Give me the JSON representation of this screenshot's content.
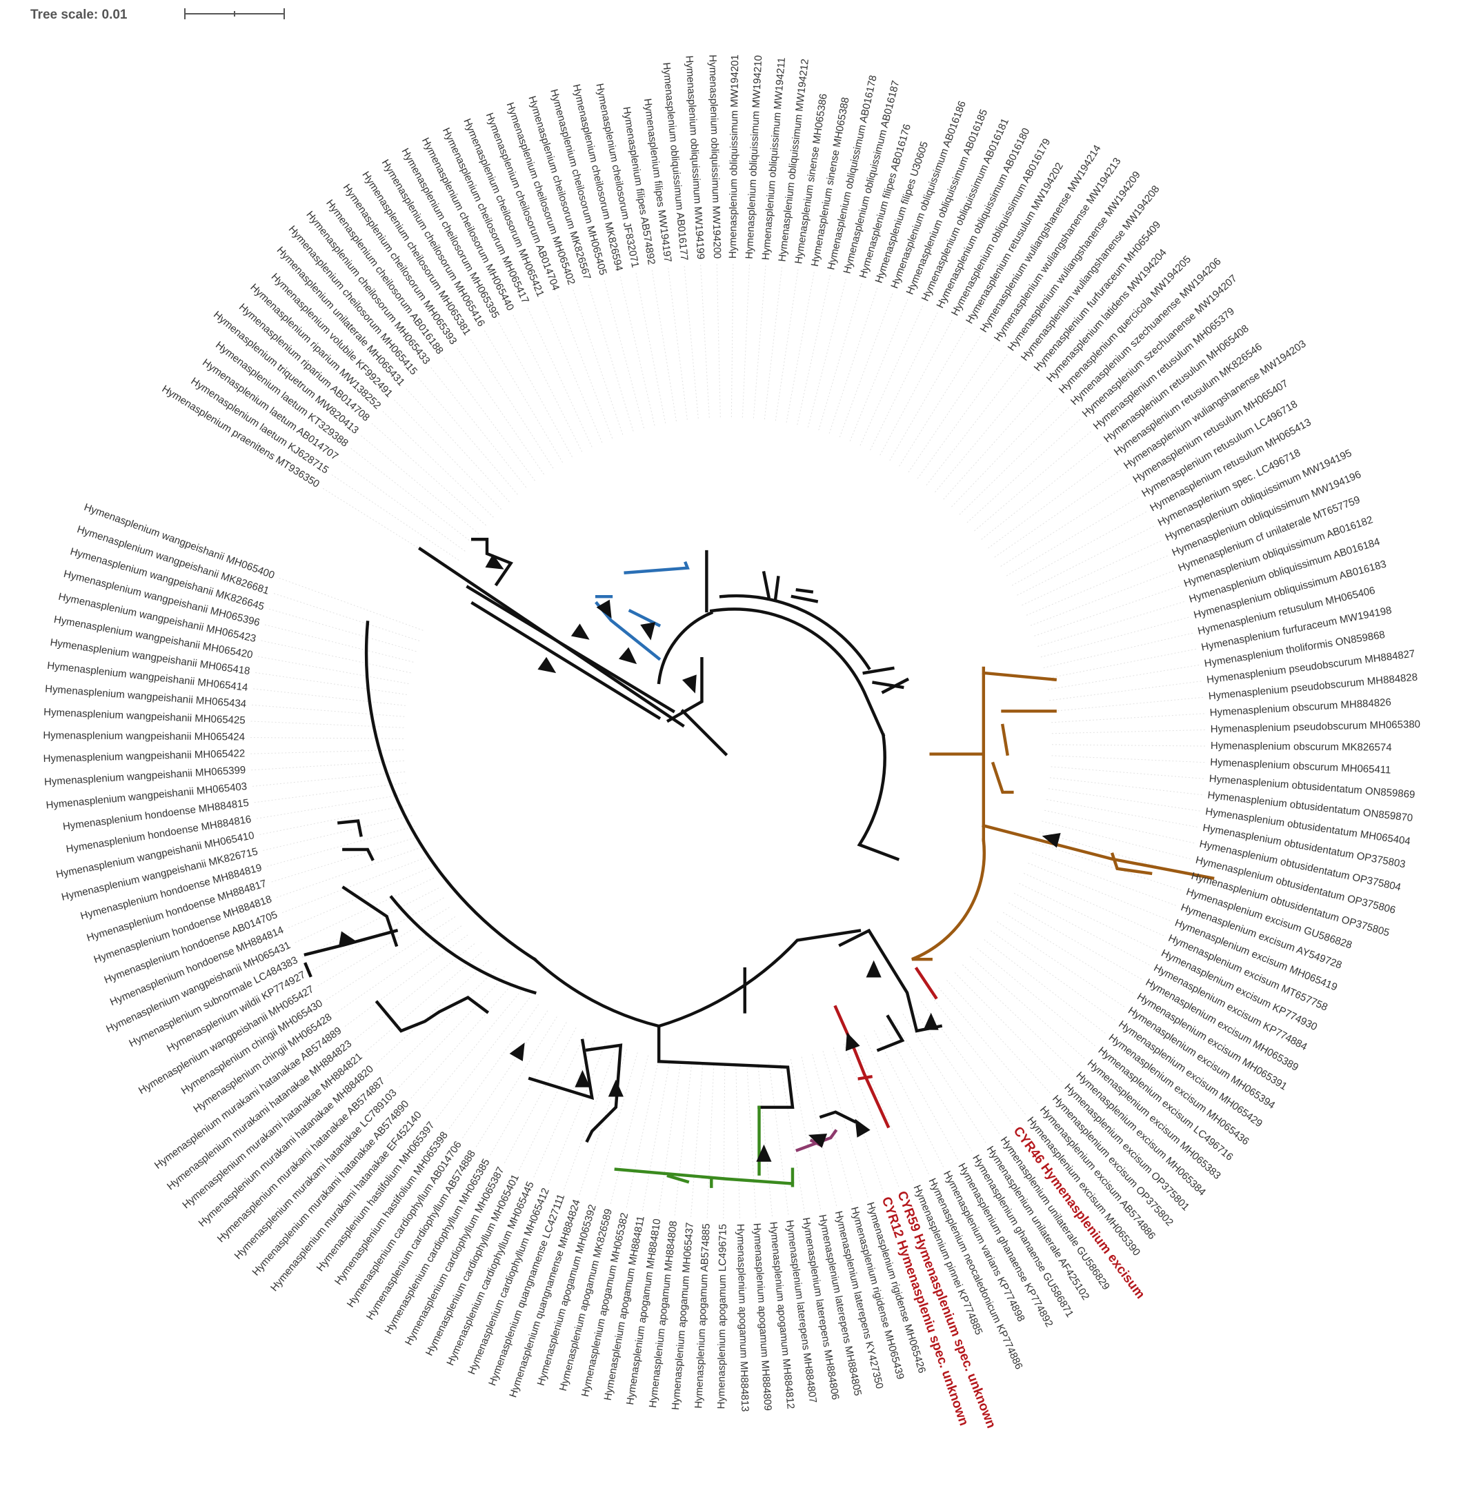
{
  "header": {
    "tree_scale": "Tree scale: 0.01"
  },
  "tree": {
    "leaves": [
      {
        "label": "Hymenasplenium praenitens MT936350"
      },
      {
        "label": "Hymenasplenium laetum KJ628715"
      },
      {
        "label": "Hymenasplenium laetum AB014707"
      },
      {
        "label": "Hymenasplenium laetum KT329388"
      },
      {
        "label": "Hymenasplenium triquetrum MW820413"
      },
      {
        "label": "Hymenasplenium riparium AB014708"
      },
      {
        "label": "Hymenasplenium riparium MW138252"
      },
      {
        "label": "Hymenasplenium volubile KF992491"
      },
      {
        "label": "Hymenasplenium unilaterale MH065431"
      },
      {
        "label": "Hymenasplenium cheilosorum MH065415"
      },
      {
        "label": "Hymenasplenium cheilosorum MH065433"
      },
      {
        "label": "Hymenasplenium cheilosorum AB016188"
      },
      {
        "label": "Hymenasplenium cheilosorum MH065393"
      },
      {
        "label": "Hymenasplenium cheilosorum MH065381"
      },
      {
        "label": "Hymenasplenium cheilosorum MH065416"
      },
      {
        "label": "Hymenasplenium cheilosorum MH065395"
      },
      {
        "label": "Hymenasplenium cheilosorum MH065440"
      },
      {
        "label": "Hymenasplenium cheilosorum MH065417"
      },
      {
        "label": "Hymenasplenium cheilosorum MH065421"
      },
      {
        "label": "Hymenasplenium cheilosorum AB014704"
      },
      {
        "label": "Hymenasplenium cheilosorum MH065402"
      },
      {
        "label": "Hymenasplenium cheilosorum MK826567"
      },
      {
        "label": "Hymenasplenium cheilosorum MH065405"
      },
      {
        "label": "Hymenasplenium cheilosorum MK826594"
      },
      {
        "label": "Hymenasplenium cheilosorum JF832071"
      },
      {
        "label": "Hymenasplenium filipes AB574892"
      },
      {
        "label": "Hymenasplenium filipes MW194197"
      },
      {
        "label": "Hymenasplenium obliquissimum AB016177"
      },
      {
        "label": "Hymenasplenium obliquissimum MW194199"
      },
      {
        "label": "Hymenasplenium obliquissimum MW194200"
      },
      {
        "label": "Hymenasplenium obliquissimum MW194201"
      },
      {
        "label": "Hymenasplenium obliquissimum MW194210"
      },
      {
        "label": "Hymenasplenium obliquissimum MW194211"
      },
      {
        "label": "Hymenasplenium obliquissimum MW194212"
      },
      {
        "label": "Hymenasplenium sinense MH065386"
      },
      {
        "label": "Hymenasplenium sinense MH065388"
      },
      {
        "label": "Hymenasplenium obliquissimum AB016178"
      },
      {
        "label": "Hymenasplenium obliquissimum AB016187"
      },
      {
        "label": "Hymenasplenium filipes AB016176"
      },
      {
        "label": "Hymenasplenium filipes U30605"
      },
      {
        "label": "Hymenasplenium obliquissimum AB016186"
      },
      {
        "label": "Hymenasplenium obliquissimum AB016185"
      },
      {
        "label": "Hymenasplenium obliquissimum AB016181"
      },
      {
        "label": "Hymenasplenium obliquissimum AB016180"
      },
      {
        "label": "Hymenasplenium obliquissimum AB016179"
      },
      {
        "label": "Hymenasplenium retusulum MW194202"
      },
      {
        "label": "Hymenasplenium wuliangshanense MW194214"
      },
      {
        "label": "Hymenasplenium wuliangshanense MW194213"
      },
      {
        "label": "Hymenasplenium wuliangshanense MW194209"
      },
      {
        "label": "Hymenasplenium wuliangshanense MW194208"
      },
      {
        "label": "Hymenasplenium furfuraceum MH065409"
      },
      {
        "label": "Hymenasplenium latidens MW194204"
      },
      {
        "label": "Hymenasplenium quercicola MW194205"
      },
      {
        "label": "Hymenasplenium szechuanense MW194206"
      },
      {
        "label": "Hymenasplenium szechuanense MW194207"
      },
      {
        "label": "Hymenasplenium retusulum MH065379"
      },
      {
        "label": "Hymenasplenium retusulum MH065408"
      },
      {
        "label": "Hymenasplenium retusulum MK826546"
      },
      {
        "label": "Hymenasplenium wuliangshanense MW194203"
      },
      {
        "label": "Hymenasplenium retusulum MH065407"
      },
      {
        "label": "Hymenasplenium retusulum LC496718"
      },
      {
        "label": "Hymenasplenium retusulum MH065413"
      },
      {
        "label": "Hymenasplenium spec. LC496718"
      },
      {
        "label": "Hymenasplenium obliquissimum MW194195"
      },
      {
        "label": "Hymenasplenium obliquissimum MW194196"
      },
      {
        "label": "Hymenasplenium cf unilaterale MT657759"
      },
      {
        "label": "Hymenasplenium obliquissimum AB016182"
      },
      {
        "label": "Hymenasplenium obliquissimum AB016184"
      },
      {
        "label": "Hymenasplenium obliquissimum AB016183"
      },
      {
        "label": "Hymenasplenium retusulum MH065406"
      },
      {
        "label": "Hymenasplenium furfuraceum MW194198"
      },
      {
        "label": "Hymenasplenium tholiformis ON859868"
      },
      {
        "label": "Hymenasplenium pseudobscurum MH884827"
      },
      {
        "label": "Hymenasplenium pseudobscurum MH884828"
      },
      {
        "label": "Hymenasplenium obscurum MH884826"
      },
      {
        "label": "Hymenasplenium pseudobscurum MH065380"
      },
      {
        "label": "Hymenasplenium obscurum MK826574"
      },
      {
        "label": "Hymenasplenium obscurum MH065411"
      },
      {
        "label": "Hymenasplenium obtusidentatum ON859869"
      },
      {
        "label": "Hymenasplenium obtusidentatum ON859870"
      },
      {
        "label": "Hymenasplenium obtusidentatum MH065404"
      },
      {
        "label": "Hymenasplenium obtusidentatum OP375803"
      },
      {
        "label": "Hymenasplenium obtusidentatum OP375804"
      },
      {
        "label": "Hymenasplenium obtusidentatum OP375806"
      },
      {
        "label": "Hymenasplenium obtusidentatum OP375805"
      },
      {
        "label": "Hymenasplenium excisum GU586828"
      },
      {
        "label": "Hymenasplenium excisum AY549728"
      },
      {
        "label": "Hymenasplenium excisum MH065419"
      },
      {
        "label": "Hymenasplenium excisum MT657758"
      },
      {
        "label": "Hymenasplenium excisum KP774930"
      },
      {
        "label": "Hymenasplenium excisum KP774884"
      },
      {
        "label": "Hymenasplenium excisum MH065389"
      },
      {
        "label": "Hymenasplenium excisum MH065391"
      },
      {
        "label": "Hymenasplenium excisum MH065394"
      },
      {
        "label": "Hymenasplenium excisum MH065429"
      },
      {
        "label": "Hymenasplenium excisum MH065436"
      },
      {
        "label": "Hymenasplenium excisum LC496716"
      },
      {
        "label": "Hymenasplenium excisum MH065383"
      },
      {
        "label": "Hymenasplenium excisum MH065384"
      },
      {
        "label": "Hymenasplenium excisum OP375801"
      },
      {
        "label": "Hymenasplenium excisum OP375802"
      },
      {
        "label": "Hymenasplenium excisum AB574886"
      },
      {
        "label": "Hymenasplenium excisum MH065390"
      },
      {
        "label": "CYR46 Hymenasplenium excisum",
        "color": "#b5171c",
        "bold": true
      },
      {
        "label": "Hymenasplenium unilaterale GU586829"
      },
      {
        "label": "Hymenasplenium unilaterale AF425102"
      },
      {
        "label": "Hymenasplenium ghanaense GU586871"
      },
      {
        "label": "Hymenasplenium ghanaense KP774892"
      },
      {
        "label": "Hymenasplenium varians KP774898"
      },
      {
        "label": "Hymenasplenium neocaledonicum KP774886"
      },
      {
        "label": "Hymenasplenium pinnei KP774885"
      },
      {
        "label": "CYR59 Hymenasplenium spec. unknown",
        "color": "#b5171c",
        "bold": true
      },
      {
        "label": "CYR12 Hymenaspleniu spec. unknown",
        "color": "#b5171c",
        "bold": true
      },
      {
        "label": "Hymenasplenium rigidense MH065426"
      },
      {
        "label": "Hymenasplenium rigidense MH065439"
      },
      {
        "label": "Hymenasplenium laterepens KY427350"
      },
      {
        "label": "Hymenasplenium laterepens MH884805"
      },
      {
        "label": "Hymenasplenium laterepens MH884806"
      },
      {
        "label": "Hymenasplenium laterepens MH884807"
      },
      {
        "label": "Hymenasplenium apogamum MH884812"
      },
      {
        "label": "Hymenasplenium apogamum MH884809"
      },
      {
        "label": "Hymenasplenium apogamum MH884813"
      },
      {
        "label": "Hymenasplenium apogamum LC496715"
      },
      {
        "label": "Hymenasplenium apogamum AB574885"
      },
      {
        "label": "Hymenasplenium apogamum MH065437"
      },
      {
        "label": "Hymenasplenium apogamum MH884808"
      },
      {
        "label": "Hymenasplenium apogamum MH884810"
      },
      {
        "label": "Hymenasplenium apogamum MH884811"
      },
      {
        "label": "Hymenasplenium apogamum MH065382"
      },
      {
        "label": "Hymenasplenium apogamum MK826589"
      },
      {
        "label": "Hymenasplenium apogamum MH065392"
      },
      {
        "label": "Hymenasplenium quangnamense MH884824"
      },
      {
        "label": "Hymenasplenium quangnamense LC427111"
      },
      {
        "label": "Hymenasplenium cardiophyllum MH065412"
      },
      {
        "label": "Hymenasplenium cardiophyllum MH065445"
      },
      {
        "label": "Hymenasplenium cardiophyllum MH065401"
      },
      {
        "label": "Hymenasplenium cardiophyllum MH065387"
      },
      {
        "label": "Hymenasplenium cardiophyllum MH065385"
      },
      {
        "label": "Hymenasplenium cardiophyllum AB574888"
      },
      {
        "label": "Hymenasplenium cardiophyllum AB014706"
      },
      {
        "label": "Hymenasplenium hastifolium MH065398"
      },
      {
        "label": "Hymenasplenium hastifolium MH065397"
      },
      {
        "label": "Hymenasplenium murakami hatanakae EF452140"
      },
      {
        "label": "Hymenasplenium murakami hatanakae AB574890"
      },
      {
        "label": "Hymenasplenium murakami hatanakae LC789103"
      },
      {
        "label": "Hymenasplenium murakami hatanakae AB574887"
      },
      {
        "label": "Hymenasplenium murakami hatanakae MH884820"
      },
      {
        "label": "Hymenasplenium murakami hatanakae MH884821"
      },
      {
        "label": "Hymenasplenium murakami hatanakae MH884823"
      },
      {
        "label": "Hymenasplenium murakami hatanakae AB574889"
      },
      {
        "label": "Hymenasplenium chingii MH065428"
      },
      {
        "label": "Hymenasplenium chingii MH065430"
      },
      {
        "label": "Hymenasplenium wangpeishanii MH065427"
      },
      {
        "label": "Hymenasplenium wildii KP774927"
      },
      {
        "label": "Hymenasplenium subnormale LC484383"
      },
      {
        "label": "Hymenasplenium wangpeishanii MH065431"
      },
      {
        "label": "Hymenasplenium hondoense MH884814"
      },
      {
        "label": "Hymenasplenium hondoense AB014705"
      },
      {
        "label": "Hymenasplenium hondoense MH884818"
      },
      {
        "label": "Hymenasplenium hondoense MH884817"
      },
      {
        "label": "Hymenasplenium hondoense MH884819"
      },
      {
        "label": "Hymenasplenium wangpeishanii MK826715"
      },
      {
        "label": "Hymenasplenium wangpeishanii MH065410"
      },
      {
        "label": "Hymenasplenium hondoense MH884816"
      },
      {
        "label": "Hymenasplenium hondoense MH884815"
      },
      {
        "label": "Hymenasplenium wangpeishanii MH065403"
      },
      {
        "label": "Hymenasplenium wangpeishanii MH065399"
      },
      {
        "label": "Hymenasplenium wangpeishanii MH065422"
      },
      {
        "label": "Hymenasplenium wangpeishanii MH065424"
      },
      {
        "label": "Hymenasplenium wangpeishanii MH065425"
      },
      {
        "label": "Hymenasplenium wangpeishanii MH065434"
      },
      {
        "label": "Hymenasplenium wangpeishanii MH065414"
      },
      {
        "label": "Hymenasplenium wangpeishanii MH065418"
      },
      {
        "label": "Hymenasplenium wangpeishanii MH065420"
      },
      {
        "label": "Hymenasplenium wangpeishanii MH065423"
      },
      {
        "label": "Hymenasplenium wangpeishanii MH065396"
      },
      {
        "label": "Hymenasplenium wangpeishanii MK826645"
      },
      {
        "label": "Hymenasplenium wangpeishanii MK826681"
      },
      {
        "label": "Hymenasplenium wangpeishanii MH065400"
      }
    ]
  }
}
